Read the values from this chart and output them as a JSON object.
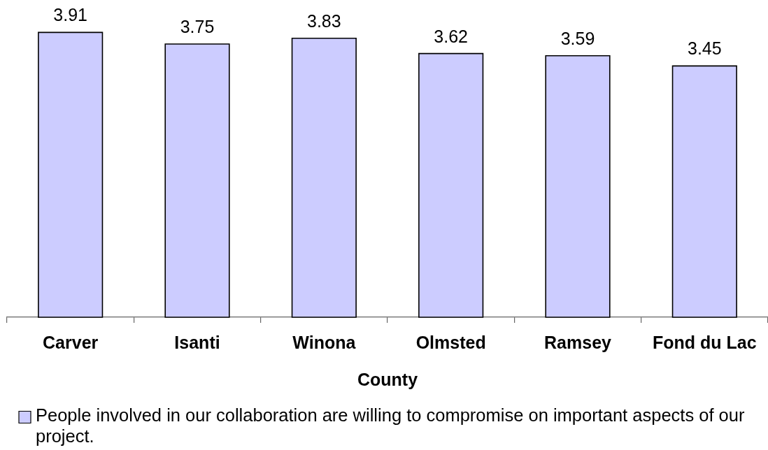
{
  "chart_data": {
    "type": "bar",
    "xlabel": "County",
    "categories": [
      "Carver",
      "Isanti",
      "Winona",
      "Olmsted",
      "Ramsey",
      "Fond du Lac"
    ],
    "series": [
      {
        "name": "People involved in our collaboration are willing to compromise on important aspects of our project.",
        "color": "#ccccff",
        "values": [
          3.91,
          3.75,
          3.83,
          3.62,
          3.59,
          3.45
        ]
      }
    ],
    "tick_labels": "x",
    "data_labels": true,
    "legend": "bottom"
  }
}
